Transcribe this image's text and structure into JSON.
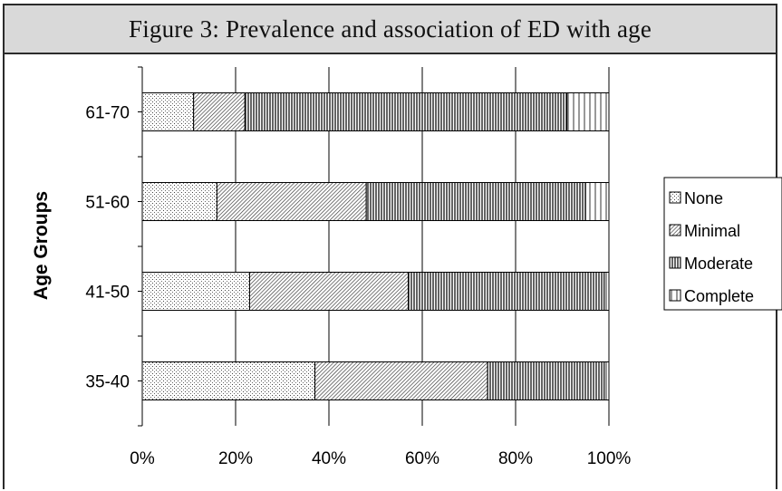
{
  "header": {
    "title": "Figure 3: Prevalence and association of ED with age"
  },
  "chart_data": {
    "type": "bar",
    "orientation": "horizontal",
    "stacked": "percent",
    "title": "Figure 3: Prevalence and association of ED with age",
    "ylabel": "Age Groups",
    "xlabel": "",
    "categories": [
      "35-40",
      "41-50",
      "51-60",
      "61-70"
    ],
    "series": [
      {
        "name": "None",
        "values": [
          37,
          23,
          16,
          11
        ],
        "pattern": "dots"
      },
      {
        "name": "Minimal",
        "values": [
          37,
          34,
          32,
          11
        ],
        "pattern": "diagonal"
      },
      {
        "name": "Moderate",
        "values": [
          25,
          42,
          47,
          69
        ],
        "pattern": "dense-vertical"
      },
      {
        "name": "Complete",
        "values": [
          1,
          1,
          5,
          9
        ],
        "pattern": "sparse-vertical"
      }
    ],
    "xlim": [
      0,
      100
    ],
    "xticks": [
      "0%",
      "20%",
      "40%",
      "60%",
      "80%",
      "100%"
    ],
    "grid": "vertical",
    "legend": "right"
  }
}
